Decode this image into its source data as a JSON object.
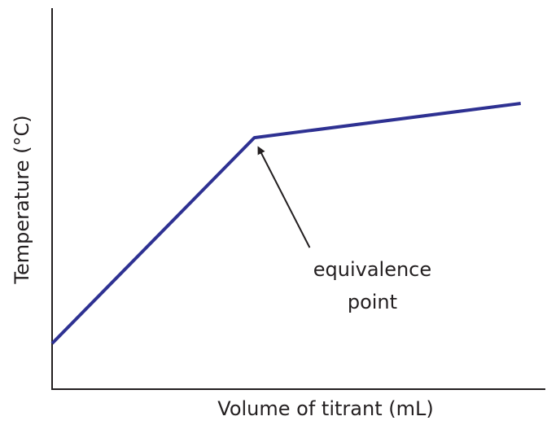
{
  "chart_data": {
    "type": "line",
    "x_label": "Volume of titrant (mL)",
    "y_label": "Temperature (°C)",
    "x": [
      0,
      41,
      95
    ],
    "series": [
      {
        "color": "#2e3192",
        "values": [
          12,
          66,
          75
        ]
      }
    ],
    "xlim": [
      0,
      100
    ],
    "ylim": [
      0,
      100
    ],
    "annotations": [
      {
        "text": "equivalence point",
        "x": 41,
        "y": 66
      }
    ]
  }
}
